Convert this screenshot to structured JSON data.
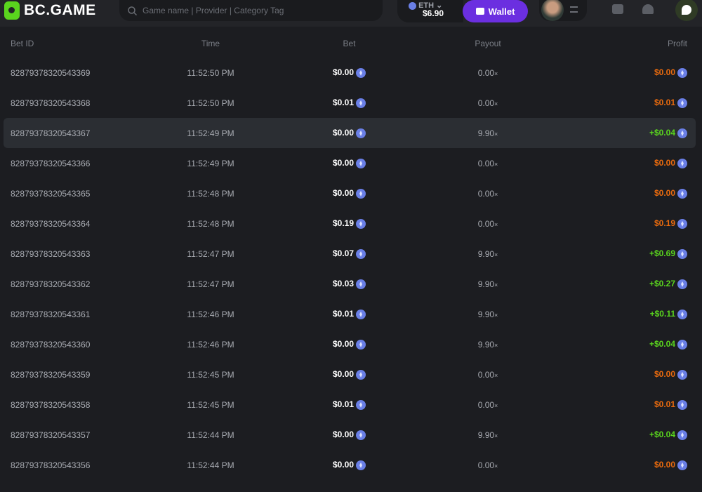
{
  "header": {
    "logo": "BC.GAME",
    "search_placeholder": "Game name | Provider | Category Tag",
    "currency": "ETH",
    "balance": "$6.90",
    "wallet_label": "Wallet"
  },
  "colors": {
    "accent": "#6b2fe0",
    "win": "#5ad41e",
    "loss": "#ea6b0e",
    "brand": "#5ad41e"
  },
  "table": {
    "columns": [
      "Bet ID",
      "Time",
      "Bet",
      "Payout",
      "Profit"
    ],
    "rows": [
      {
        "id": "82879378320543369",
        "time": "11:52:50 PM",
        "bet": "$0.00",
        "payout": "0.00",
        "profit": "$0.00",
        "win": false
      },
      {
        "id": "82879378320543368",
        "time": "11:52:50 PM",
        "bet": "$0.01",
        "payout": "0.00",
        "profit": "$0.01",
        "win": false
      },
      {
        "id": "82879378320543367",
        "time": "11:52:49 PM",
        "bet": "$0.00",
        "payout": "9.90",
        "profit": "+$0.04",
        "win": true
      },
      {
        "id": "82879378320543366",
        "time": "11:52:49 PM",
        "bet": "$0.00",
        "payout": "0.00",
        "profit": "$0.00",
        "win": false
      },
      {
        "id": "82879378320543365",
        "time": "11:52:48 PM",
        "bet": "$0.00",
        "payout": "0.00",
        "profit": "$0.00",
        "win": false
      },
      {
        "id": "82879378320543364",
        "time": "11:52:48 PM",
        "bet": "$0.19",
        "payout": "0.00",
        "profit": "$0.19",
        "win": false
      },
      {
        "id": "82879378320543363",
        "time": "11:52:47 PM",
        "bet": "$0.07",
        "payout": "9.90",
        "profit": "+$0.69",
        "win": true
      },
      {
        "id": "82879378320543362",
        "time": "11:52:47 PM",
        "bet": "$0.03",
        "payout": "9.90",
        "profit": "+$0.27",
        "win": true
      },
      {
        "id": "82879378320543361",
        "time": "11:52:46 PM",
        "bet": "$0.01",
        "payout": "9.90",
        "profit": "+$0.11",
        "win": true
      },
      {
        "id": "82879378320543360",
        "time": "11:52:46 PM",
        "bet": "$0.00",
        "payout": "9.90",
        "profit": "+$0.04",
        "win": true
      },
      {
        "id": "82879378320543359",
        "time": "11:52:45 PM",
        "bet": "$0.00",
        "payout": "0.00",
        "profit": "$0.00",
        "win": false
      },
      {
        "id": "82879378320543358",
        "time": "11:52:45 PM",
        "bet": "$0.01",
        "payout": "0.00",
        "profit": "$0.01",
        "win": false
      },
      {
        "id": "82879378320543357",
        "time": "11:52:44 PM",
        "bet": "$0.00",
        "payout": "9.90",
        "profit": "+$0.04",
        "win": true
      },
      {
        "id": "82879378320543356",
        "time": "11:52:44 PM",
        "bet": "$0.00",
        "payout": "0.00",
        "profit": "$0.00",
        "win": false
      }
    ],
    "payout_suffix": "×",
    "highlighted_row": 2
  }
}
